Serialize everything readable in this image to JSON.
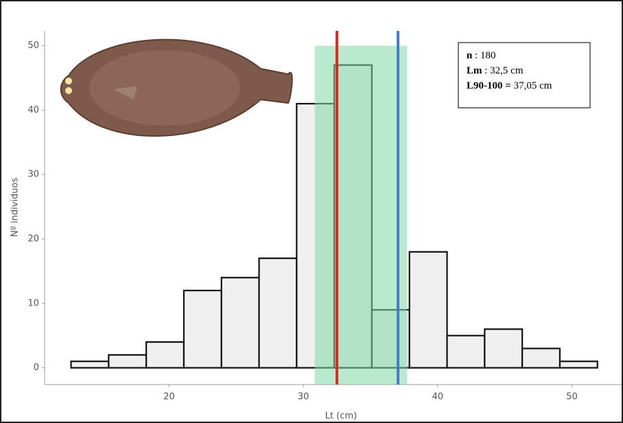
{
  "chart_data": {
    "type": "histogram",
    "x_label": "Lt (cm)",
    "y_label": "Nº individuos",
    "bins": [
      12.7,
      15.5,
      18.3,
      21.1,
      23.9,
      26.7,
      29.5,
      32.3,
      35.1,
      37.9,
      40.7,
      43.5,
      46.3,
      49.1,
      51.9
    ],
    "counts": [
      1,
      2,
      4,
      12,
      14,
      17,
      41,
      47,
      9,
      18,
      5,
      6,
      3,
      1
    ],
    "color": "#f0f0f0",
    "xlim": [
      10.73,
      53.7
    ],
    "xticks": [
      20,
      30,
      40,
      50
    ],
    "ylim": [
      -2.6,
      52.3
    ],
    "yticks": [
      0,
      10,
      20,
      30,
      40,
      50
    ],
    "vlines": [
      {
        "value": 32.5,
        "color": "#e8231e"
      },
      {
        "value": 37.05,
        "color": "#3f7fc9"
      }
    ],
    "span": {
      "xmin": 30.85,
      "xmax": 37.73,
      "ymax": 50,
      "color": "#7fd9a4"
    },
    "annotation": [
      {
        "bold": "n",
        "text": " : 180"
      },
      {
        "bold": "Lm",
        "text": " : 32,5 cm"
      },
      {
        "bold": "L90-100 =",
        "text": " 37,05 cm"
      }
    ]
  }
}
